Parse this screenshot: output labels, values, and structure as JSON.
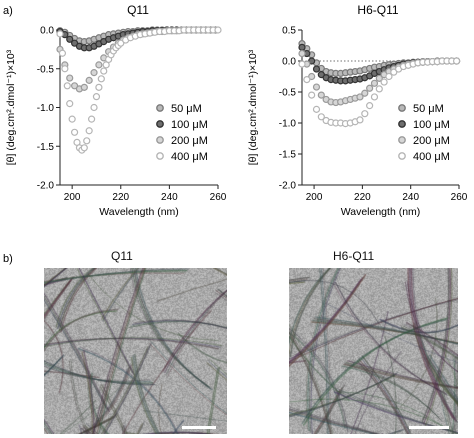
{
  "figure": {
    "panel_a_label": "a)",
    "panel_b_label": "b)",
    "tem_left_title": "Q11",
    "tem_right_title": "H6-Q11"
  },
  "chart_data": [
    {
      "type": "scatter",
      "title": "Q11",
      "xlabel": "Wavelength (nm)",
      "ylabel": "[θ] (deg.cm².dmol⁻¹)×10³",
      "xlim": [
        195,
        260
      ],
      "ylim": [
        -2.0,
        0.0
      ],
      "xticks": [
        200,
        220,
        240,
        260
      ],
      "yticks": [
        0.0,
        -0.5,
        -1.0,
        -1.5,
        -2.0
      ],
      "ytick_labels": [
        "0.0",
        "-0.5",
        "-1.0",
        "-1.5",
        "-2.0"
      ],
      "zero_line": false,
      "legend_position": "lower-right",
      "series": [
        {
          "name": "50 μM",
          "color": "#7a7a7a",
          "fill": "#b9b9b9",
          "x": [
            195,
            197,
            199,
            201,
            203,
            205,
            207,
            209,
            211,
            213,
            215,
            217,
            219,
            221,
            223,
            225,
            227,
            229,
            231,
            233,
            235,
            237,
            239,
            241,
            243,
            245,
            247,
            249,
            251,
            253,
            255,
            257,
            259
          ],
          "y": [
            -0.01,
            -0.03,
            -0.07,
            -0.11,
            -0.14,
            -0.15,
            -0.14,
            -0.12,
            -0.1,
            -0.08,
            -0.06,
            -0.05,
            -0.04,
            -0.03,
            -0.02,
            -0.02,
            -0.01,
            -0.01,
            -0.01,
            0,
            0,
            0,
            0,
            0,
            0,
            0,
            0,
            0,
            0,
            0,
            0,
            0,
            0
          ]
        },
        {
          "name": "100 μM",
          "color": "#333333",
          "fill": "#6e6e6e",
          "x": [
            195,
            197,
            199,
            201,
            203,
            205,
            207,
            209,
            211,
            213,
            215,
            217,
            219,
            221,
            223,
            225,
            227,
            229,
            231,
            233,
            235,
            237,
            239,
            241,
            243,
            245,
            247,
            249,
            251,
            253,
            255,
            257,
            259
          ],
          "y": [
            -0.02,
            -0.06,
            -0.12,
            -0.17,
            -0.21,
            -0.23,
            -0.23,
            -0.21,
            -0.18,
            -0.15,
            -0.12,
            -0.1,
            -0.08,
            -0.06,
            -0.05,
            -0.04,
            -0.03,
            -0.02,
            -0.02,
            -0.01,
            -0.01,
            -0.01,
            0,
            0,
            0,
            0,
            0,
            0,
            0,
            0,
            0,
            0,
            0
          ]
        },
        {
          "name": "200 μM",
          "color": "#9a9a9a",
          "fill": "#d6d6d6",
          "x": [
            195,
            197,
            199,
            201,
            203,
            205,
            207,
            209,
            211,
            213,
            215,
            217,
            219,
            221,
            223,
            225,
            227,
            229,
            231,
            233,
            235,
            237,
            239,
            241,
            243,
            245,
            247,
            249,
            251,
            253,
            255,
            257,
            259
          ],
          "y": [
            -0.25,
            -0.45,
            -0.62,
            -0.72,
            -0.76,
            -0.74,
            -0.65,
            -0.55,
            -0.45,
            -0.36,
            -0.28,
            -0.22,
            -0.17,
            -0.13,
            -0.1,
            -0.08,
            -0.06,
            -0.05,
            -0.04,
            -0.03,
            -0.02,
            -0.02,
            -0.01,
            -0.01,
            -0.01,
            0,
            0,
            0,
            0,
            0,
            0,
            0,
            0
          ]
        },
        {
          "name": "400 μM",
          "color": "#b5b5b5",
          "fill": "#ffffff",
          "x": [
            195,
            196,
            197,
            198,
            199,
            200,
            201,
            202,
            203,
            204,
            205,
            206,
            207,
            208,
            209,
            210,
            211,
            212,
            213,
            214,
            215,
            216,
            217,
            218,
            219,
            220,
            222,
            224,
            226,
            228,
            230,
            232,
            234,
            236,
            238,
            240,
            242,
            244,
            246,
            248,
            250,
            252,
            254,
            256,
            258,
            260
          ],
          "y": [
            -0.05,
            -0.3,
            -0.5,
            -0.72,
            -0.95,
            -1.15,
            -1.32,
            -1.45,
            -1.52,
            -1.55,
            -1.52,
            -1.43,
            -1.3,
            -1.15,
            -1.0,
            -0.86,
            -0.74,
            -0.63,
            -0.53,
            -0.45,
            -0.38,
            -0.32,
            -0.27,
            -0.23,
            -0.2,
            -0.17,
            -0.13,
            -0.1,
            -0.08,
            -0.06,
            -0.05,
            -0.04,
            -0.03,
            -0.02,
            -0.02,
            -0.01,
            -0.01,
            -0.01,
            0,
            0,
            0,
            0,
            0,
            0,
            0,
            0
          ]
        }
      ]
    },
    {
      "type": "scatter",
      "title": "H6-Q11",
      "xlabel": "Wavelength (nm)",
      "ylabel": "[θ] (deg.cm².dmol⁻¹)×10³",
      "xlim": [
        195,
        260
      ],
      "ylim": [
        -2.0,
        0.5
      ],
      "xticks": [
        200,
        220,
        240,
        260
      ],
      "yticks": [
        0.5,
        0.0,
        -0.5,
        -1.0,
        -1.5,
        -2.0
      ],
      "ytick_labels": [
        "0.5",
        "0.0",
        "-0.5",
        "-1.0",
        "-1.5",
        "-2.0"
      ],
      "zero_line": true,
      "legend_position": "lower-right",
      "series": [
        {
          "name": "50 μM",
          "color": "#7a7a7a",
          "fill": "#b9b9b9",
          "x": [
            195,
            197,
            199,
            201,
            203,
            205,
            207,
            209,
            211,
            213,
            215,
            217,
            219,
            221,
            223,
            225,
            227,
            229,
            231,
            233,
            235,
            237,
            239,
            241,
            243,
            245,
            247,
            249,
            251,
            253,
            255,
            257,
            259
          ],
          "y": [
            0.28,
            0.2,
            0.1,
            -0.03,
            -0.12,
            -0.17,
            -0.19,
            -0.2,
            -0.2,
            -0.19,
            -0.18,
            -0.17,
            -0.16,
            -0.14,
            -0.12,
            -0.1,
            -0.09,
            -0.07,
            -0.06,
            -0.05,
            -0.04,
            -0.03,
            -0.03,
            -0.02,
            -0.02,
            -0.01,
            -0.01,
            -0.01,
            0,
            0,
            0,
            0,
            0
          ]
        },
        {
          "name": "100 μM",
          "color": "#333333",
          "fill": "#6e6e6e",
          "x": [
            195,
            197,
            199,
            201,
            203,
            205,
            207,
            209,
            211,
            213,
            215,
            217,
            219,
            221,
            223,
            225,
            227,
            229,
            231,
            233,
            235,
            237,
            239,
            241,
            243,
            245,
            247,
            249,
            251,
            253,
            255,
            257,
            259
          ],
          "y": [
            0.22,
            0.12,
            0.0,
            -0.13,
            -0.22,
            -0.27,
            -0.3,
            -0.31,
            -0.32,
            -0.32,
            -0.31,
            -0.3,
            -0.29,
            -0.27,
            -0.24,
            -0.2,
            -0.17,
            -0.14,
            -0.11,
            -0.09,
            -0.07,
            -0.05,
            -0.04,
            -0.03,
            -0.02,
            -0.02,
            -0.01,
            -0.01,
            -0.01,
            0,
            0,
            0,
            0
          ]
        },
        {
          "name": "200 μM",
          "color": "#9a9a9a",
          "fill": "#d6d6d6",
          "x": [
            195,
            197,
            199,
            201,
            203,
            205,
            207,
            209,
            211,
            213,
            215,
            217,
            219,
            221,
            223,
            225,
            227,
            229,
            231,
            233,
            235,
            237,
            239,
            241,
            243,
            245,
            247,
            249,
            251,
            253,
            255,
            257,
            259
          ],
          "y": [
            0.12,
            -0.05,
            -0.25,
            -0.42,
            -0.55,
            -0.62,
            -0.66,
            -0.67,
            -0.66,
            -0.64,
            -0.62,
            -0.6,
            -0.58,
            -0.52,
            -0.44,
            -0.36,
            -0.28,
            -0.22,
            -0.17,
            -0.13,
            -0.1,
            -0.07,
            -0.05,
            -0.04,
            -0.03,
            -0.02,
            -0.01,
            -0.01,
            -0.01,
            0,
            0,
            0,
            0
          ]
        },
        {
          "name": "400 μM",
          "color": "#b5b5b5",
          "fill": "#ffffff",
          "x": [
            195,
            197,
            199,
            201,
            203,
            205,
            207,
            209,
            211,
            213,
            215,
            217,
            219,
            221,
            223,
            225,
            227,
            229,
            231,
            233,
            235,
            237,
            239,
            241,
            243,
            245,
            247,
            249,
            251,
            253,
            255,
            257,
            259
          ],
          "y": [
            -0.05,
            -0.3,
            -0.55,
            -0.78,
            -0.9,
            -0.96,
            -0.99,
            -1.0,
            -1.0,
            -1.01,
            -1.0,
            -0.98,
            -0.95,
            -0.85,
            -0.72,
            -0.58,
            -0.45,
            -0.34,
            -0.25,
            -0.18,
            -0.13,
            -0.09,
            -0.07,
            -0.05,
            -0.03,
            -0.02,
            -0.02,
            -0.01,
            -0.01,
            0,
            0,
            0,
            0
          ]
        }
      ]
    }
  ]
}
